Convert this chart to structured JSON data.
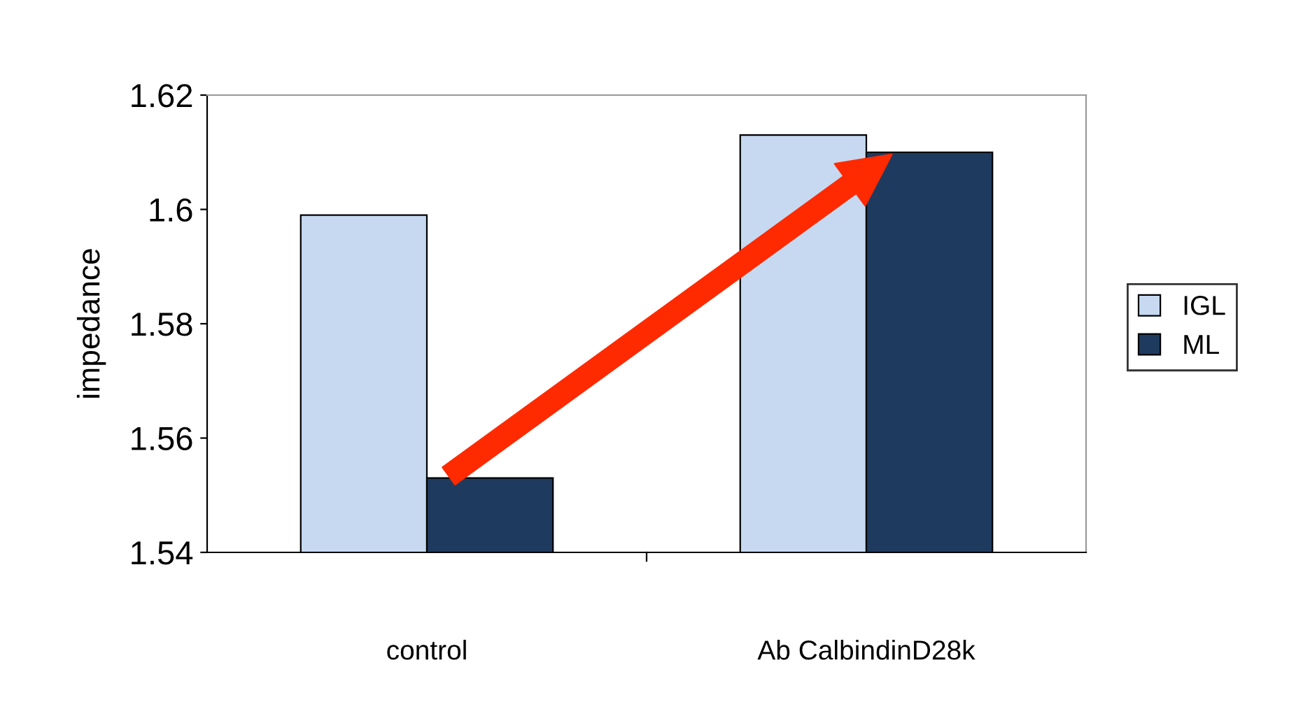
{
  "chart_data": {
    "type": "bar",
    "ylabel": "impedance",
    "categories": [
      "control",
      "Ab CalbindinD28k"
    ],
    "series": [
      {
        "name": "IGL",
        "color": "#c6d9f1",
        "values": [
          1.599,
          1.613
        ]
      },
      {
        "name": "ML",
        "color": "#1f3a5f",
        "values": [
          1.553,
          1.61
        ]
      }
    ],
    "ylim": [
      1.54,
      1.62
    ],
    "yticks": [
      1.54,
      1.56,
      1.58,
      1.6,
      1.62
    ],
    "grid": false,
    "legend": "right"
  }
}
